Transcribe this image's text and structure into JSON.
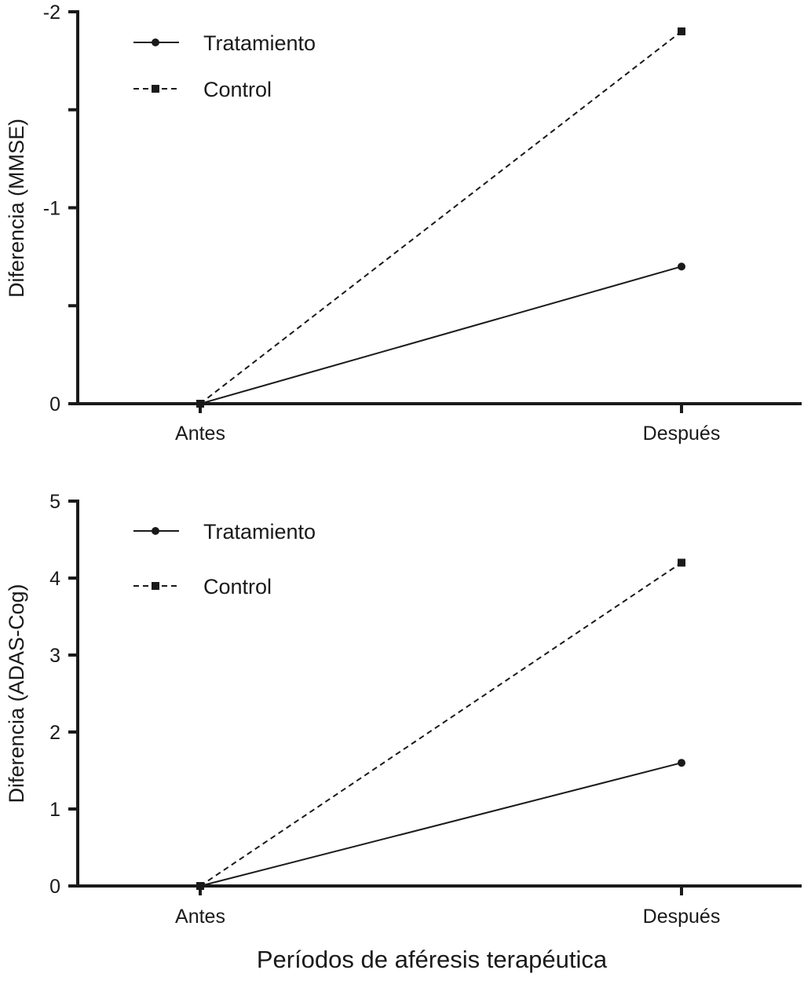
{
  "chart_data": [
    {
      "type": "line",
      "title": "",
      "xlabel": "",
      "ylabel": "Diferencia (MMSE)",
      "categories": [
        "Antes",
        "Después"
      ],
      "ylim": [
        0,
        -2
      ],
      "y_inverted": true,
      "yticks": [
        0,
        -0.5,
        -1,
        -1.5,
        -2
      ],
      "ytick_labels": [
        "0",
        "",
        "-1",
        "",
        "-2"
      ],
      "grid": false,
      "legend_position": "top-left",
      "series": [
        {
          "name": "Tratamiento",
          "marker": "circle",
          "line": "solid",
          "values": [
            0,
            -0.7
          ]
        },
        {
          "name": "Control",
          "marker": "square",
          "line": "dashed",
          "values": [
            0,
            -1.9
          ]
        }
      ]
    },
    {
      "type": "line",
      "title": "",
      "xlabel": "Períodos de aféresis terapéutica",
      "ylabel": "Diferencia (ADAS-Cog)",
      "categories": [
        "Antes",
        "Después"
      ],
      "ylim": [
        0,
        5
      ],
      "y_inverted": false,
      "yticks": [
        0,
        1,
        2,
        3,
        4,
        5
      ],
      "ytick_labels": [
        "0",
        "1",
        "2",
        "3",
        "4",
        "5"
      ],
      "grid": false,
      "legend_position": "top-left",
      "series": [
        {
          "name": "Tratamiento",
          "marker": "circle",
          "line": "solid",
          "values": [
            0,
            1.6
          ]
        },
        {
          "name": "Control",
          "marker": "square",
          "line": "dashed",
          "values": [
            0,
            4.2
          ]
        }
      ]
    }
  ]
}
